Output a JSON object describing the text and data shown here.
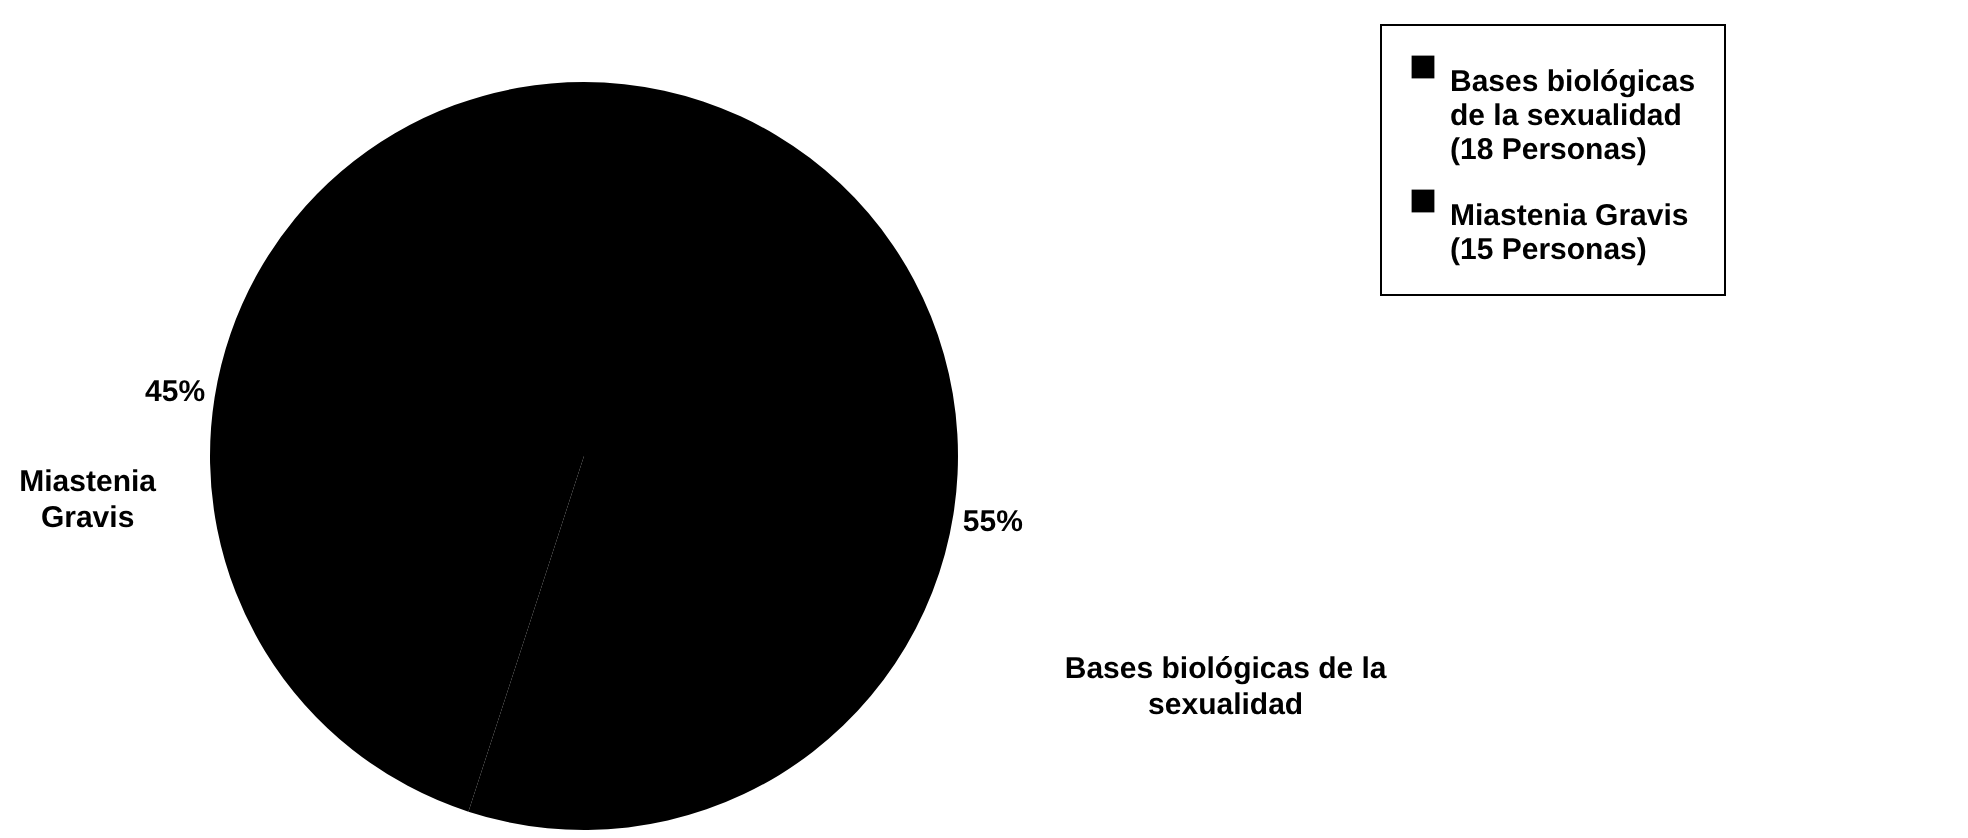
{
  "chart_data": {
    "type": "pie",
    "categories": [
      "Bases biológicas de la sexualidad",
      "Miastenia Gravis"
    ],
    "values": [
      55,
      45
    ],
    "value_labels": [
      "55%",
      "45%"
    ],
    "colors": [
      "#000000",
      "#000000"
    ],
    "annotations": [
      "(18 Personas)",
      "(15 Personas)"
    ],
    "legend": "top right"
  }
}
